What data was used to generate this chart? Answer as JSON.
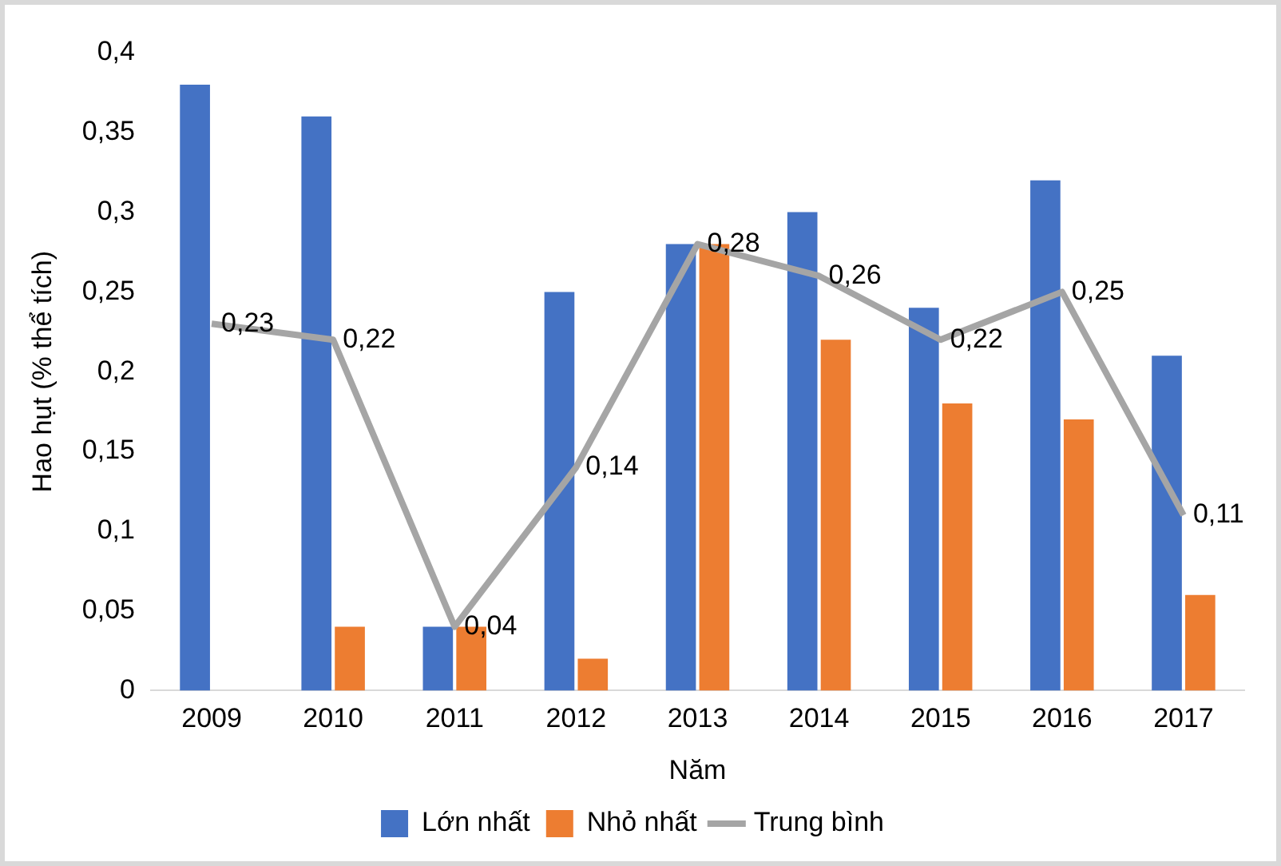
{
  "chart_data": {
    "type": "bar",
    "xlabel": "Năm",
    "ylabel": "Hao hụt (% thể tích)",
    "categories": [
      "2009",
      "2010",
      "2011",
      "2012",
      "2013",
      "2014",
      "2015",
      "2016",
      "2017"
    ],
    "series": [
      {
        "name": "Lớn nhất",
        "color": "#4472c4",
        "values": [
          0.38,
          0.36,
          0.04,
          0.25,
          0.28,
          0.3,
          0.24,
          0.32,
          0.21
        ]
      },
      {
        "name": "Nhỏ nhất",
        "color": "#ed7d31",
        "values": [
          0,
          0.04,
          0.04,
          0.02,
          0.28,
          0.22,
          0.18,
          0.17,
          0.06
        ]
      },
      {
        "name": "Trung bình",
        "type": "line",
        "color": "#a5a5a5",
        "marker": "none",
        "values": [
          0.23,
          0.22,
          0.04,
          0.14,
          0.28,
          0.26,
          0.22,
          0.25,
          0.11
        ],
        "value_labels": [
          "0,23",
          "0,22",
          "0,04",
          "0,14",
          "0,28",
          "0,26",
          "0,22",
          "0,25",
          "0,11"
        ]
      }
    ],
    "ylim": [
      0,
      0.4
    ],
    "yticks": [
      {
        "value": 0,
        "label": "0"
      },
      {
        "value": 0.05,
        "label": "0,05"
      },
      {
        "value": 0.1,
        "label": "0,1"
      },
      {
        "value": 0.15,
        "label": "0,15"
      },
      {
        "value": 0.2,
        "label": "0,2"
      },
      {
        "value": 0.25,
        "label": "0,25"
      },
      {
        "value": 0.3,
        "label": "0,3"
      },
      {
        "value": 0.35,
        "label": "0,35"
      },
      {
        "value": 0.4,
        "label": "0,4"
      }
    ],
    "grid": false,
    "legend": "bottom"
  }
}
